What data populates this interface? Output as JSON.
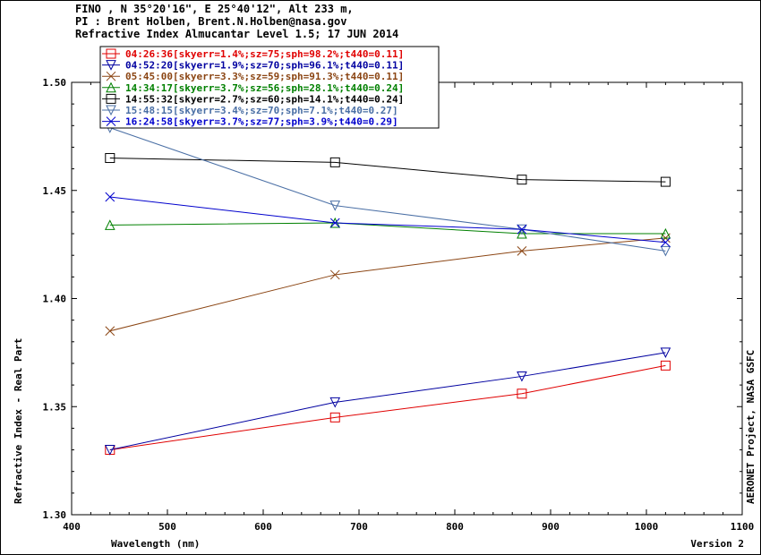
{
  "header": {
    "line1": "FINO , N 35°20'16\", E 25°40'12\", Alt 233 m,",
    "line2": "PI : Brent Holben, Brent.N.Holben@nasa.gov",
    "line3": "Refractive Index Almucantar Level 1.5; 17 JUN 2014"
  },
  "footer": {
    "version": "Version 2",
    "credit": "AERONET Project, NASA GSFC"
  },
  "chart_data": {
    "type": "line",
    "xlabel": "Wavelength (nm)",
    "ylabel": "Refractive Index - Real Part",
    "xlim": [
      400,
      1100
    ],
    "ylim": [
      1.3,
      1.5
    ],
    "xticks": [
      400,
      500,
      600,
      700,
      800,
      900,
      1000,
      1100
    ],
    "yticks": [
      1.3,
      1.35,
      1.4,
      1.45,
      1.5
    ],
    "ytick_labels": [
      "1.30",
      "1.35",
      "1.40",
      "1.45",
      "1.50"
    ],
    "grid": false,
    "legend_position": "top-left",
    "x": [
      440,
      675,
      870,
      1020
    ],
    "series": [
      {
        "name": "04:26:36[skyerr=1.4%;sz=75;sph=98.2%;t440=0.11]",
        "color": "#e00000",
        "marker": "square",
        "values": [
          1.33,
          1.345,
          1.356,
          1.369
        ]
      },
      {
        "name": "04:52:20[skyerr=1.9%;sz=70;sph=96.1%;t440=0.11]",
        "color": "#0000a0",
        "marker": "triangle-down",
        "values": [
          1.33,
          1.352,
          1.364,
          1.375
        ]
      },
      {
        "name": "05:45:00[skyerr=3.3%;sz=59;sph=91.3%;t440=0.11]",
        "color": "#8b4513",
        "marker": "x",
        "values": [
          1.385,
          1.411,
          1.422,
          1.428
        ]
      },
      {
        "name": "14:34:17[skyerr=3.7%;sz=56;sph=28.1%;t440=0.24]",
        "color": "#008000",
        "marker": "triangle-up",
        "values": [
          1.434,
          1.435,
          1.43,
          1.43
        ]
      },
      {
        "name": "14:55:32[skyerr=2.7%;sz=60;sph=14.1%;t440=0.24]",
        "color": "#000000",
        "marker": "square",
        "values": [
          1.465,
          1.463,
          1.455,
          1.454
        ]
      },
      {
        "name": "15:48:15[skyerr=3.4%;sz=70;sph=7.1%;t440=0.27]",
        "color": "#4a6fa5",
        "marker": "triangle-down",
        "values": [
          1.479,
          1.443,
          1.432,
          1.422
        ]
      },
      {
        "name": "16:24:58[skyerr=3.7%;sz=77;sph=3.9%;t440=0.29]",
        "color": "#0000cd",
        "marker": "x",
        "values": [
          1.447,
          1.435,
          1.432,
          1.426
        ]
      }
    ]
  }
}
